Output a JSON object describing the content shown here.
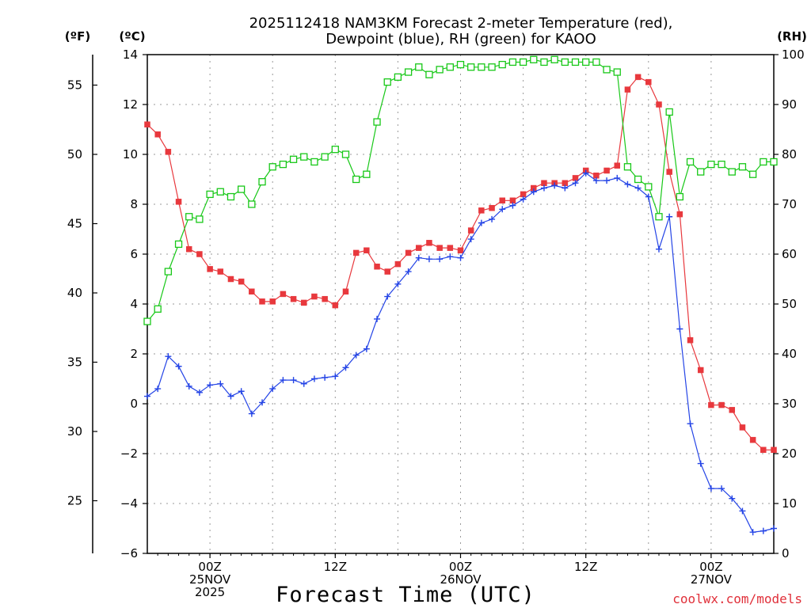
{
  "chart_data": {
    "type": "line",
    "title_line1": "2025112418 NAM3KM Forecast 2-meter Temperature (red),",
    "title_line2": "Dewpoint (blue), RH (green) for KAOO",
    "xlabel": "Forecast Time (UTC)",
    "credit": "coolwx.com/models",
    "unit_labels": {
      "fahrenheit": "(ºF)",
      "celsius": "(ºC)",
      "rh": "(RH)"
    },
    "x_range_hours": [
      18,
      78
    ],
    "x_ticks": [
      {
        "hour": 24,
        "lines": [
          "00Z",
          "25NOV",
          "2025"
        ]
      },
      {
        "hour": 36,
        "lines": [
          "12Z"
        ]
      },
      {
        "hour": 48,
        "lines": [
          "00Z",
          "26NOV"
        ]
      },
      {
        "hour": 60,
        "lines": [
          "12Z"
        ]
      },
      {
        "hour": 72,
        "lines": [
          "00Z",
          "27NOV"
        ]
      }
    ],
    "y_celsius": {
      "range": [
        -6,
        14
      ],
      "ticks": [
        "−6",
        "−4",
        "−2",
        "0",
        "2",
        "4",
        "6",
        "8",
        "10",
        "12",
        "14"
      ]
    },
    "y_fahrenheit": {
      "ticks": [
        "25",
        "30",
        "35",
        "40",
        "45",
        "50",
        "55"
      ]
    },
    "y_rh": {
      "range": [
        0,
        100
      ],
      "ticks": [
        "0",
        "10",
        "20",
        "30",
        "40",
        "50",
        "60",
        "70",
        "80",
        "90",
        "100"
      ]
    },
    "series": [
      {
        "name": "Temperature",
        "units": "C",
        "color": "#e8383d",
        "marker": "filled-square",
        "values": [
          11.2,
          10.8,
          10.1,
          8.1,
          6.2,
          6.0,
          5.4,
          5.3,
          5.0,
          4.9,
          4.5,
          4.1,
          4.1,
          4.4,
          4.2,
          4.05,
          4.3,
          4.2,
          3.95,
          4.5,
          6.05,
          6.15,
          5.5,
          5.3,
          5.6,
          6.05,
          6.25,
          6.45,
          6.25,
          6.25,
          6.15,
          6.95,
          7.75,
          7.85,
          8.15,
          8.15,
          8.4,
          8.65,
          8.85,
          8.85,
          8.85,
          9.05,
          9.35,
          9.15,
          9.35,
          9.55,
          12.6,
          13.1,
          12.9,
          12.0,
          9.3,
          7.6,
          2.55,
          1.35,
          -0.05,
          -0.05,
          -0.25,
          -0.95,
          -1.45,
          -1.85,
          -1.85
        ]
      },
      {
        "name": "Dewpoint",
        "units": "C",
        "color": "#2444e6",
        "marker": "plus",
        "values": [
          0.3,
          0.6,
          1.9,
          1.5,
          0.7,
          0.45,
          0.75,
          0.8,
          0.3,
          0.5,
          -0.4,
          0.05,
          0.6,
          0.95,
          0.95,
          0.8,
          1.0,
          1.05,
          1.1,
          1.45,
          1.95,
          2.2,
          3.4,
          4.3,
          4.8,
          5.3,
          5.85,
          5.8,
          5.8,
          5.9,
          5.85,
          6.6,
          7.25,
          7.4,
          7.8,
          7.95,
          8.2,
          8.5,
          8.65,
          8.75,
          8.65,
          8.85,
          9.25,
          8.95,
          8.95,
          9.05,
          8.8,
          8.65,
          8.3,
          6.2,
          7.5,
          3.0,
          -0.8,
          -2.4,
          -3.4,
          -3.4,
          -3.8,
          -4.3,
          -5.15,
          -5.1,
          -5.0
        ]
      },
      {
        "name": "RH",
        "units": "%",
        "color": "#18c818",
        "marker": "open-square",
        "values": [
          46.5,
          49.0,
          56.5,
          62.0,
          67.5,
          67.0,
          72.0,
          72.5,
          71.5,
          73.0,
          70.0,
          74.5,
          77.5,
          78.0,
          79.0,
          79.5,
          78.5,
          79.5,
          81.0,
          80.0,
          75.0,
          76.0,
          86.5,
          94.5,
          95.5,
          96.5,
          97.5,
          96.0,
          97.0,
          97.5,
          98.0,
          97.5,
          97.5,
          97.5,
          98.0,
          98.5,
          98.5,
          99.0,
          98.5,
          99.0,
          98.5,
          98.5,
          98.5,
          98.5,
          97.0,
          96.5,
          77.5,
          75.0,
          73.5,
          67.5,
          88.5,
          71.5,
          78.5,
          76.5,
          78.0,
          78.0,
          76.5,
          77.5,
          76.0,
          78.5,
          78.5
        ]
      }
    ]
  }
}
